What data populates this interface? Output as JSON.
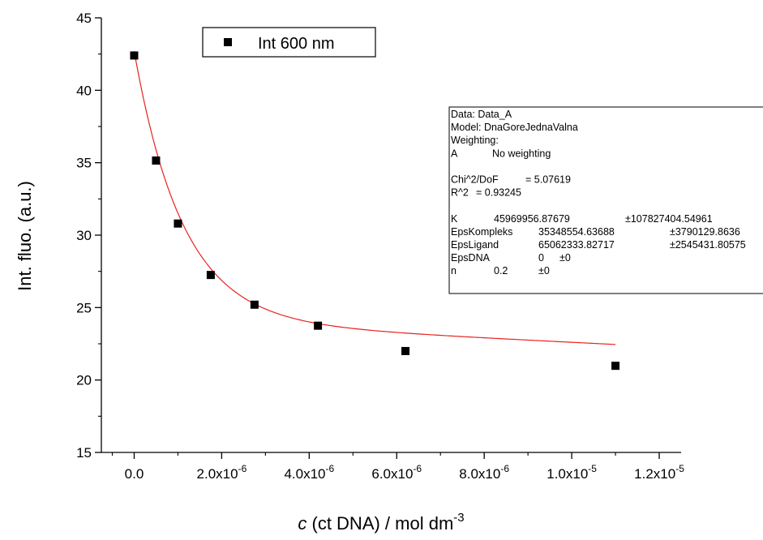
{
  "chart_data": {
    "type": "scatter",
    "title": "",
    "xlabel": {
      "italic": "c",
      "text": " (ct DNA) / mol dm",
      "sup": "-3"
    },
    "ylabel": "Int. fluo. (a.u.)",
    "xlim": [
      -7.5e-07,
      1.25e-05
    ],
    "ylim": [
      15,
      45
    ],
    "grid": false,
    "legend_position": "top-left",
    "x_ticks": [
      {
        "value": 0,
        "base": "0.0",
        "sup": ""
      },
      {
        "value": 2e-06,
        "base": "2.0x10",
        "sup": "-6"
      },
      {
        "value": 4e-06,
        "base": "4.0x10",
        "sup": "-6"
      },
      {
        "value": 6e-06,
        "base": "6.0x10",
        "sup": "-6"
      },
      {
        "value": 8e-06,
        "base": "8.0x10",
        "sup": "-6"
      },
      {
        "value": 1e-05,
        "base": "1.0x10",
        "sup": "-5"
      },
      {
        "value": 1.2e-05,
        "base": "1.2x10",
        "sup": "-5"
      }
    ],
    "y_ticks": [
      15,
      20,
      25,
      30,
      35,
      40,
      45
    ],
    "series": [
      {
        "name": "Int 600 nm",
        "marker": "square",
        "color": "#000000",
        "x": [
          0,
          5e-07,
          1e-06,
          1.75e-06,
          2.75e-06,
          4.2e-06,
          6.2e-06,
          1.1e-05
        ],
        "y": [
          42.4,
          35.15,
          30.8,
          27.25,
          25.2,
          23.75,
          22.0,
          20.98
        ]
      },
      {
        "name": "fit",
        "kind": "line",
        "color": "#e8231f",
        "fit": {
          "y0": 42.7,
          "a": 18.6,
          "k": 900000,
          "slope": -150000,
          "offset": 0,
          "xmax": 1.1e-05
        }
      }
    ],
    "fit_box": {
      "lines": [
        [
          "Data: Data_A"
        ],
        [
          "Model: DnaGoreJednaValna"
        ],
        [
          "Weighting:"
        ],
        [
          "A",
          "No weighting"
        ],
        [
          ""
        ],
        [
          "Chi^2/DoF",
          "= 5.07619"
        ],
        [
          "R^2",
          "=  0.93245"
        ],
        [
          ""
        ],
        [
          "K",
          "45969956.87679",
          "±107827404.54961"
        ],
        [
          "EpsKompleks",
          "35348554.63688",
          "±3790129.8636"
        ],
        [
          "EpsLigand",
          "65062333.82717",
          "±2545431.80575"
        ],
        [
          "EpsDNA",
          "0",
          "±0"
        ],
        [
          "n",
          "0.2",
          "±0"
        ]
      ]
    }
  }
}
